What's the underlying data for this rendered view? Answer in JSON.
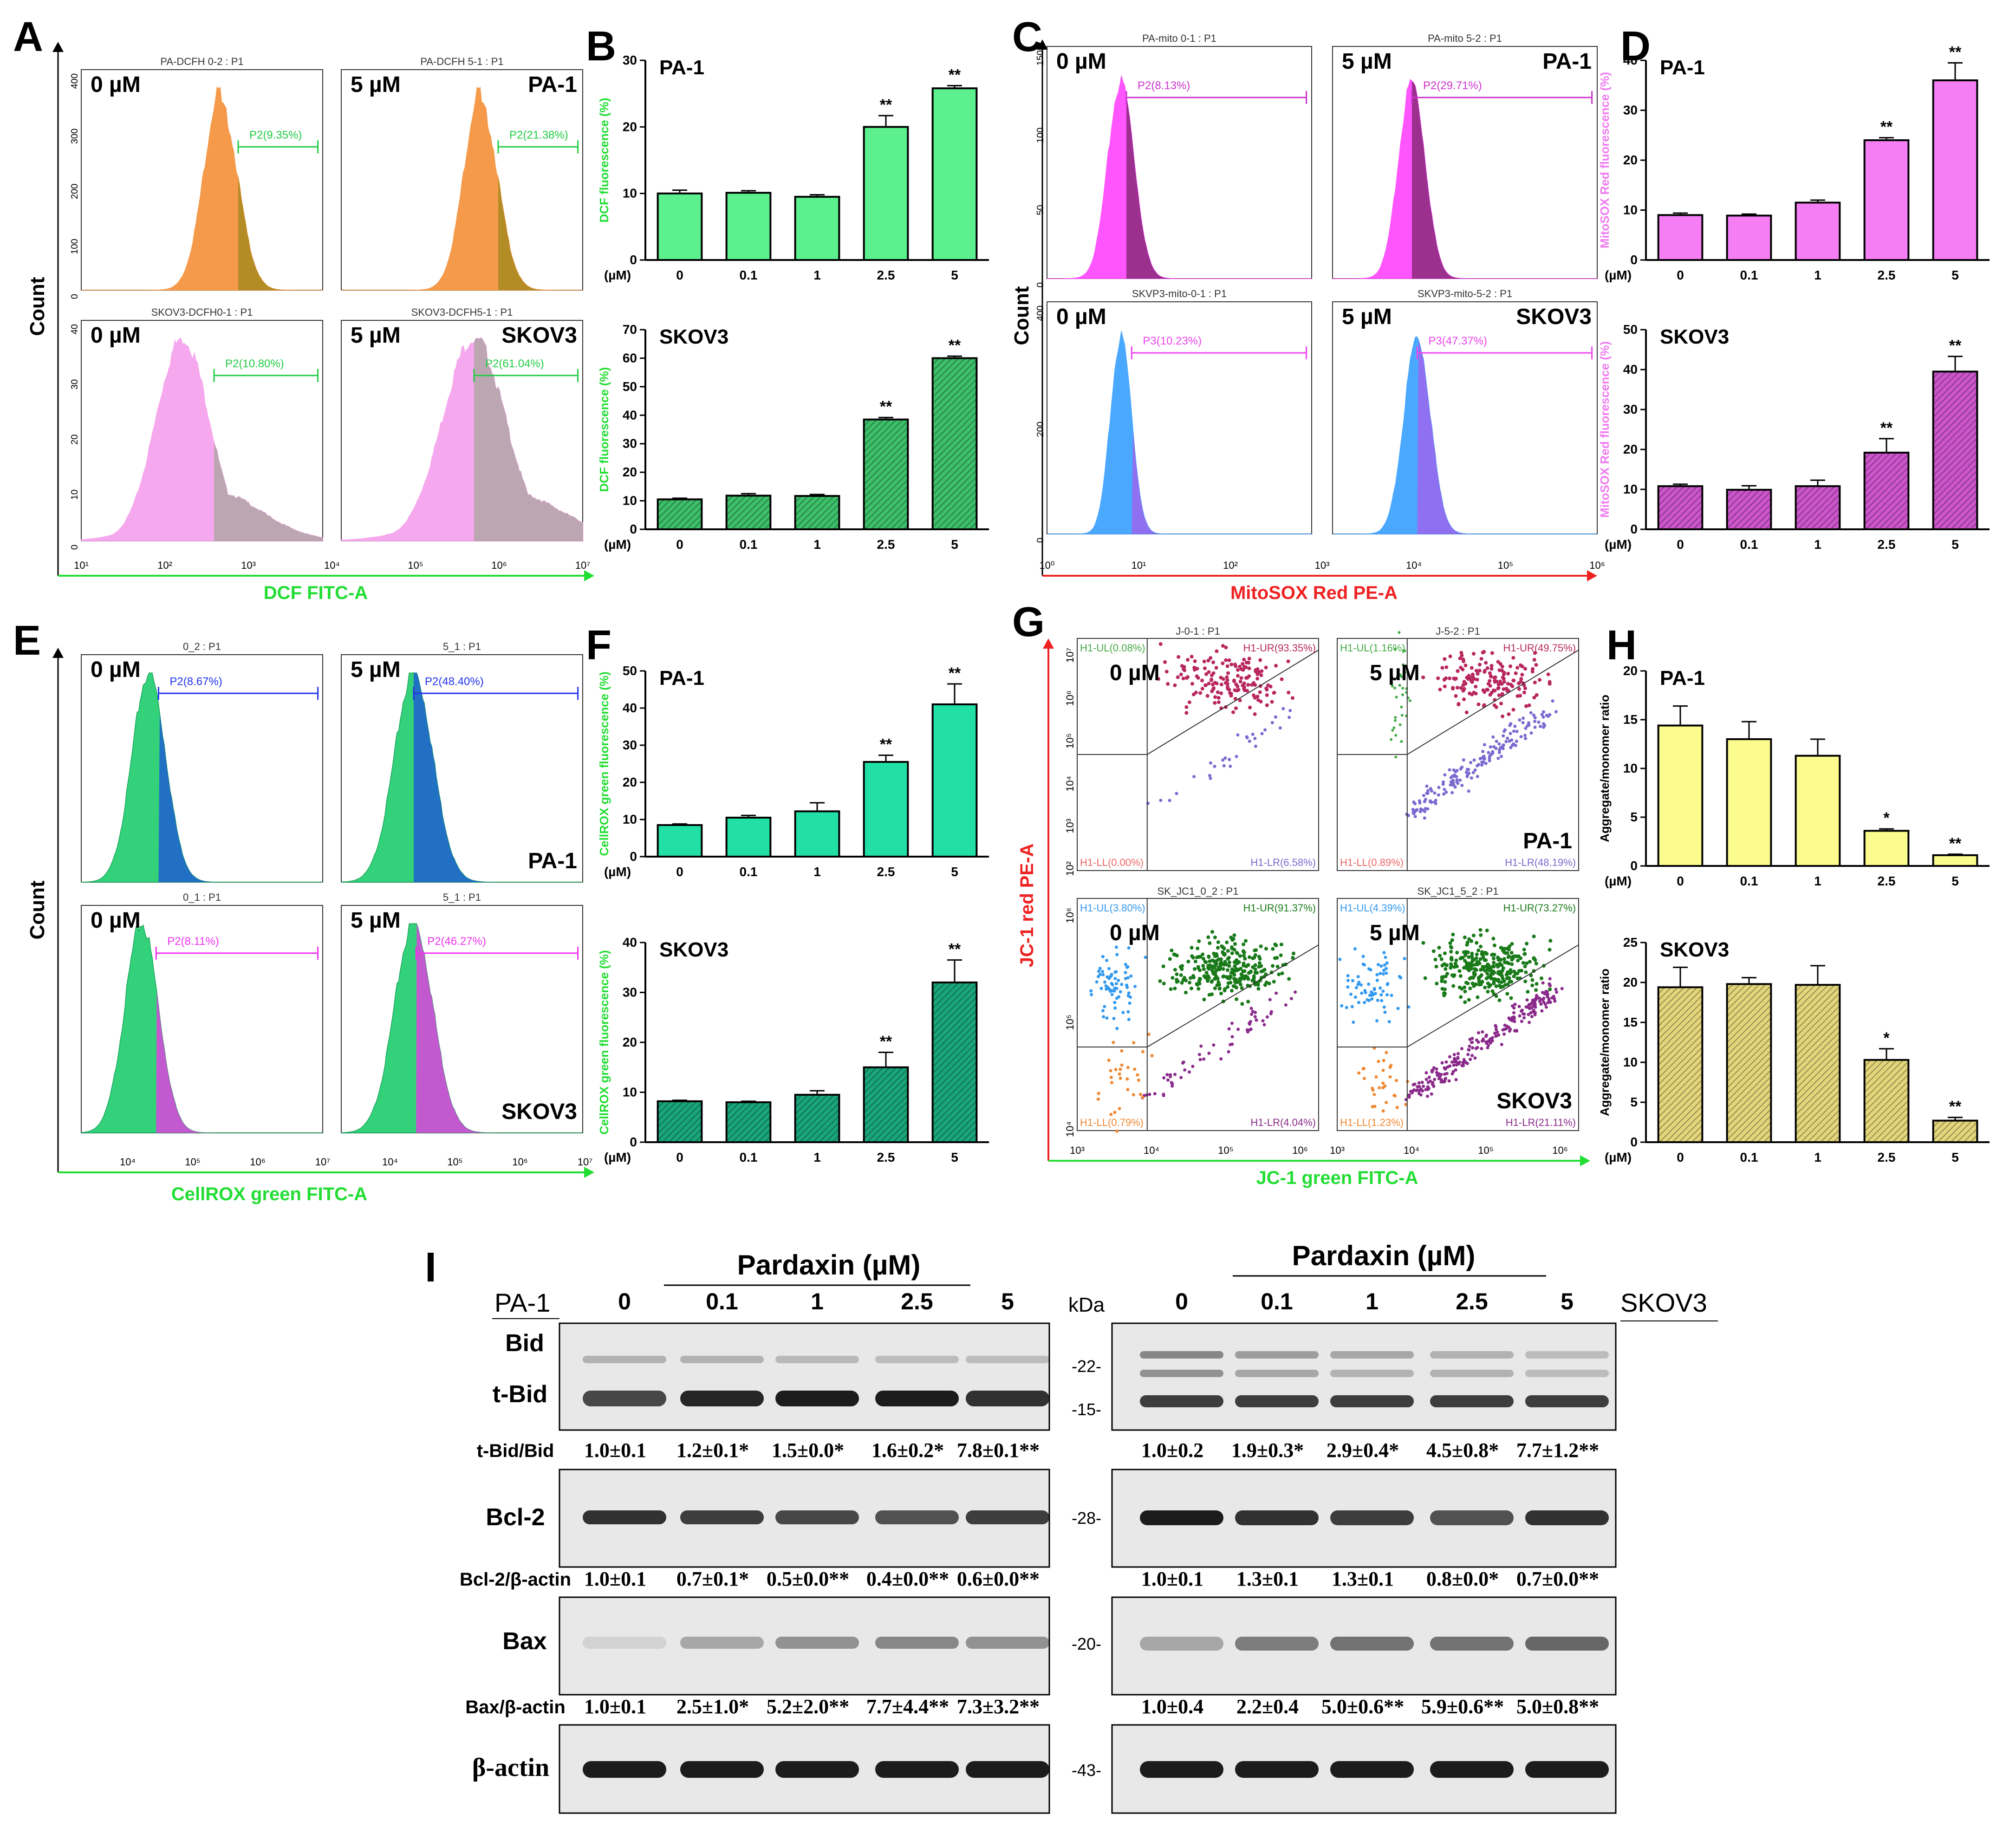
{
  "figure_labels": [
    "A",
    "B",
    "C",
    "D",
    "E",
    "F",
    "G",
    "H",
    "I"
  ],
  "panel_A": {
    "y_axis_label": "Count",
    "x_axis_label": "DCF FITC-A",
    "y_ticks_top": [
      "0",
      "100",
      "200",
      "300",
      "400"
    ],
    "y_ticks_bottom": [
      "0",
      "10",
      "20",
      "30",
      "40"
    ],
    "x_ticks": [
      "10¹",
      "10²",
      "10³",
      "10⁴",
      "10⁵",
      "10⁶",
      "10⁷"
    ],
    "plots": [
      {
        "header": "PA-DCFH 0-2 : P1",
        "dose": "0 µM",
        "cell": "",
        "gate": "P2(9.35%)"
      },
      {
        "header": "PA-DCFH 5-1 : P1",
        "dose": "5 µM",
        "cell": "PA-1",
        "gate": "P2(21.38%)"
      },
      {
        "header": "SKOV3-DCFH0-1 : P1",
        "dose": "0 µM",
        "cell": "",
        "gate": "P2(10.80%)"
      },
      {
        "header": "SKOV3-DCFH5-1 : P1",
        "dose": "5 µM",
        "cell": "SKOV3",
        "gate": "P2(61.04%)"
      }
    ]
  },
  "panel_C": {
    "y_axis_label": "Count",
    "x_axis_label": "MitoSOX Red PE-A",
    "y_ticks_top": [
      "0",
      "50",
      "100",
      "150"
    ],
    "y_ticks_bottom": [
      "0",
      "200",
      "400"
    ],
    "x_ticks": [
      "10⁰",
      "10¹",
      "10²",
      "10³",
      "10⁴",
      "10⁵",
      "10⁶"
    ],
    "plots": [
      {
        "header": "PA-mito 0-1 : P1",
        "dose": "0 µM",
        "cell": "",
        "gate": "P2(8.13%)"
      },
      {
        "header": "PA-mito 5-2 : P1",
        "dose": "5 µM",
        "cell": "PA-1",
        "gate": "P2(29.71%)"
      },
      {
        "header": "SKVP3-mito-0-1 : P1",
        "dose": "0 µM",
        "cell": "",
        "gate": "P3(10.23%)"
      },
      {
        "header": "SKVP3-mito-5-2 : P1",
        "dose": "5 µM",
        "cell": "SKOV3",
        "gate": "P3(47.37%)"
      }
    ]
  },
  "panel_E": {
    "y_axis_label": "Count",
    "x_axis_label": "CellROX green FITC-A",
    "x_ticks": [
      "10⁴",
      "10⁵",
      "10⁶",
      "10⁷"
    ],
    "plots": [
      {
        "header": "0_2 : P1",
        "dose": "0 µM",
        "cell": "",
        "gate": "P2(8.67%)"
      },
      {
        "header": "5_1 : P1",
        "dose": "5 µM",
        "cell": "PA-1",
        "gate": "P2(48.40%)"
      },
      {
        "header": "0_1 : P1",
        "dose": "0 µM",
        "cell": "",
        "gate": "P2(8.11%)"
      },
      {
        "header": "5_1 : P1",
        "dose": "5 µM",
        "cell": "SKOV3",
        "gate": "P2(46.27%)"
      }
    ]
  },
  "panel_G": {
    "y_axis_label": "JC-1 red PE-A",
    "x_axis_label": "JC-1 green FITC-A",
    "y_ticks_top": [
      "10²",
      "10³",
      "10⁴",
      "10⁵",
      "10⁶",
      "10⁷"
    ],
    "y_ticks_bottom": [
      "10⁴",
      "10⁵",
      "10⁶"
    ],
    "x_ticks": [
      "10³",
      "10⁴",
      "10⁵",
      "10⁶"
    ],
    "plots": [
      {
        "header": "J-0-1 : P1",
        "dose": "0 µM",
        "cell": "",
        "ul": "H1-UL(0.08%)",
        "ur": "H1-UR(93.35%)",
        "ll": "H1-LL(0.00%)",
        "lr": "H1-LR(6.58%)"
      },
      {
        "header": "J-5-2 : P1",
        "dose": "5 µM",
        "cell": "PA-1",
        "ul": "H1-UL(1.16%)",
        "ur": "H1-UR(49.75%)",
        "ll": "H1-LL(0.89%)",
        "lr": "H1-LR(48.19%)"
      },
      {
        "header": "SK_JC1_0_2 : P1",
        "dose": "0 µM",
        "cell": "",
        "ul": "H1-UL(3.80%)",
        "ur": "H1-UR(91.37%)",
        "ll": "H1-LL(0.79%)",
        "lr": "H1-LR(4.04%)"
      },
      {
        "header": "SK_JC1_5_2 : P1",
        "dose": "5 µM",
        "cell": "SKOV3",
        "ul": "H1-UL(4.39%)",
        "ur": "H1-UR(73.27%)",
        "ll": "H1-LL(1.23%)",
        "lr": "H1-LR(21.11%)"
      }
    ]
  },
  "chart_data": [
    {
      "id": "B-PA-1",
      "type": "bar",
      "title": "PA-1",
      "ylabel": "DCF fluorescence (%)",
      "xlabel": "(µM)",
      "categories": [
        "0",
        "0.1",
        "1",
        "2.5",
        "5"
      ],
      "values": [
        10,
        10.1,
        9.5,
        20,
        25.8
      ],
      "errors": [
        0.5,
        0.3,
        0.3,
        1.7,
        0.4
      ],
      "significance": [
        "",
        "",
        "",
        "**",
        "**"
      ],
      "ylim": [
        0,
        30
      ],
      "yticks": [
        0,
        10,
        20,
        30
      ],
      "color": "#5cf08e",
      "hatch": false
    },
    {
      "id": "B-SKOV3",
      "type": "bar",
      "title": "SKOV3",
      "ylabel": "DCF fluorescence (%)",
      "xlabel": "(µM)",
      "categories": [
        "0",
        "0.1",
        "1",
        "2.5",
        "5"
      ],
      "values": [
        10.5,
        11.8,
        11.7,
        38.5,
        60
      ],
      "errors": [
        0.4,
        0.7,
        0.5,
        0.7,
        0.7
      ],
      "significance": [
        "",
        "",
        "",
        "**",
        "**"
      ],
      "ylim": [
        0,
        70
      ],
      "yticks": [
        0,
        10,
        20,
        30,
        40,
        50,
        60,
        70
      ],
      "color": "#3dbf6a",
      "hatch": true
    },
    {
      "id": "D-PA-1",
      "type": "bar",
      "title": "PA-1",
      "ylabel": "MitoSOX Red fluorescence (%)",
      "xlabel": "(µM)",
      "categories": [
        "0",
        "0.1",
        "1",
        "2.5",
        "5"
      ],
      "values": [
        9,
        8.9,
        11.5,
        24,
        36
      ],
      "errors": [
        0.4,
        0.3,
        0.5,
        0.5,
        3.5
      ],
      "significance": [
        "",
        "",
        "",
        "**",
        "**"
      ],
      "ylim": [
        0,
        40
      ],
      "yticks": [
        0,
        10,
        20,
        30,
        40
      ],
      "color": "#f57ef5",
      "hatch": false
    },
    {
      "id": "D-SKOV3",
      "type": "bar",
      "title": "SKOV3",
      "ylabel": "MitoSOX Red fluorescence (%)",
      "xlabel": "(µM)",
      "categories": [
        "0",
        "0.1",
        "1",
        "2.5",
        "5"
      ],
      "values": [
        10.8,
        9.9,
        10.8,
        19.2,
        39.5
      ],
      "errors": [
        0.5,
        1.0,
        1.5,
        3.5,
        3.8
      ],
      "significance": [
        "",
        "",
        "",
        "**",
        "**"
      ],
      "ylim": [
        0,
        50
      ],
      "yticks": [
        0,
        10,
        20,
        30,
        40,
        50
      ],
      "color": "#cc55cc",
      "hatch": true
    },
    {
      "id": "F-PA-1",
      "type": "bar",
      "title": "PA-1",
      "ylabel": "CellROX green fluorescence (%)",
      "xlabel": "(µM)",
      "categories": [
        "0",
        "0.1",
        "1",
        "2.5",
        "5"
      ],
      "values": [
        8.5,
        10.5,
        12.2,
        25.5,
        41
      ],
      "errors": [
        0.3,
        0.6,
        2.3,
        1.8,
        5.5
      ],
      "significance": [
        "",
        "",
        "",
        "**",
        "**"
      ],
      "ylim": [
        0,
        50
      ],
      "yticks": [
        0,
        10,
        20,
        30,
        40,
        50
      ],
      "color": "#22e0a5",
      "hatch": false
    },
    {
      "id": "F-SKOV3",
      "type": "bar",
      "title": "SKOV3",
      "ylabel": "CellROX green fluorescence (%)",
      "xlabel": "(µM)",
      "categories": [
        "0",
        "0.1",
        "1",
        "2.5",
        "5"
      ],
      "values": [
        8.2,
        8,
        9.5,
        15,
        32
      ],
      "errors": [
        0.2,
        0.2,
        0.8,
        3.0,
        4.5
      ],
      "significance": [
        "",
        "",
        "",
        "**",
        "**"
      ],
      "ylim": [
        0,
        40
      ],
      "yticks": [
        0,
        10,
        20,
        30,
        40
      ],
      "color": "#1aa57a",
      "hatch": true
    },
    {
      "id": "H-PA-1",
      "type": "bar",
      "title": "PA-1",
      "ylabel": "Aggregate/monomer ratio",
      "xlabel": "(µM)",
      "categories": [
        "0",
        "0.1",
        "1",
        "2.5",
        "5"
      ],
      "values": [
        14.4,
        13,
        11.3,
        3.6,
        1.1
      ],
      "errors": [
        2.0,
        1.8,
        1.7,
        0.2,
        0.1
      ],
      "significance": [
        "",
        "",
        "",
        "*",
        "**"
      ],
      "ylim": [
        0,
        20
      ],
      "yticks": [
        0,
        5,
        10,
        15,
        20
      ],
      "color": "#fbfb8e",
      "hatch": false
    },
    {
      "id": "H-SKOV3",
      "type": "bar",
      "title": "SKOV3",
      "ylabel": "Aggregate/monomer ratio",
      "xlabel": "(µM)",
      "categories": [
        "0",
        "0.1",
        "1",
        "2.5",
        "5"
      ],
      "values": [
        19.4,
        19.8,
        19.7,
        10.3,
        2.7
      ],
      "errors": [
        2.5,
        0.8,
        2.4,
        1.4,
        0.4
      ],
      "significance": [
        "",
        "",
        "",
        "*",
        "**"
      ],
      "ylim": [
        0,
        25
      ],
      "yticks": [
        0,
        5,
        10,
        15,
        20,
        25
      ],
      "color": "#e3d57a",
      "hatch": true
    }
  ],
  "panel_I": {
    "treatment": "Pardaxin (µM)",
    "doses": [
      "0",
      "0.1",
      "1",
      "2.5",
      "5"
    ],
    "cell_left": "PA-1",
    "cell_right": "SKOV3",
    "kda_header": "kDa",
    "blots": {
      "bid": {
        "labels": [
          "Bid",
          "t-Bid"
        ],
        "markers": [
          "-22-",
          "-15-"
        ]
      },
      "bcl2": {
        "label": "Bcl-2",
        "marker": "-28-"
      },
      "bax": {
        "label": "Bax",
        "marker": "-20-"
      },
      "actin": {
        "label": "β-actin",
        "marker": "-43-"
      }
    },
    "quant": [
      {
        "label": "t-Bid/Bid",
        "left": [
          "1.0±0.1",
          "1.2±0.1*",
          "1.5±0.0*",
          "1.6±0.2*",
          "7.8±0.1**"
        ],
        "right": [
          "1.0±0.2",
          "1.9±0.3*",
          "2.9±0.4*",
          "4.5±0.8*",
          "7.7±1.2**"
        ]
      },
      {
        "label": "Bcl-2/β-actin",
        "left": [
          "1.0±0.1",
          "0.7±0.1*",
          "0.5±0.0**",
          "0.4±0.0**",
          "0.6±0.0**"
        ],
        "right": [
          "1.0±0.1",
          "1.3±0.1",
          "1.3±0.1",
          "0.8±0.0*",
          "0.7±0.0**"
        ]
      },
      {
        "label": "Bax/β-actin",
        "left": [
          "1.0±0.1",
          "2.5±1.0*",
          "5.2±2.0**",
          "7.7±4.4**",
          "7.3±3.2**"
        ],
        "right": [
          "1.0±0.4",
          "2.2±0.4",
          "5.0±0.6**",
          "5.9±0.6**",
          "5.0±0.8**"
        ]
      }
    ]
  }
}
